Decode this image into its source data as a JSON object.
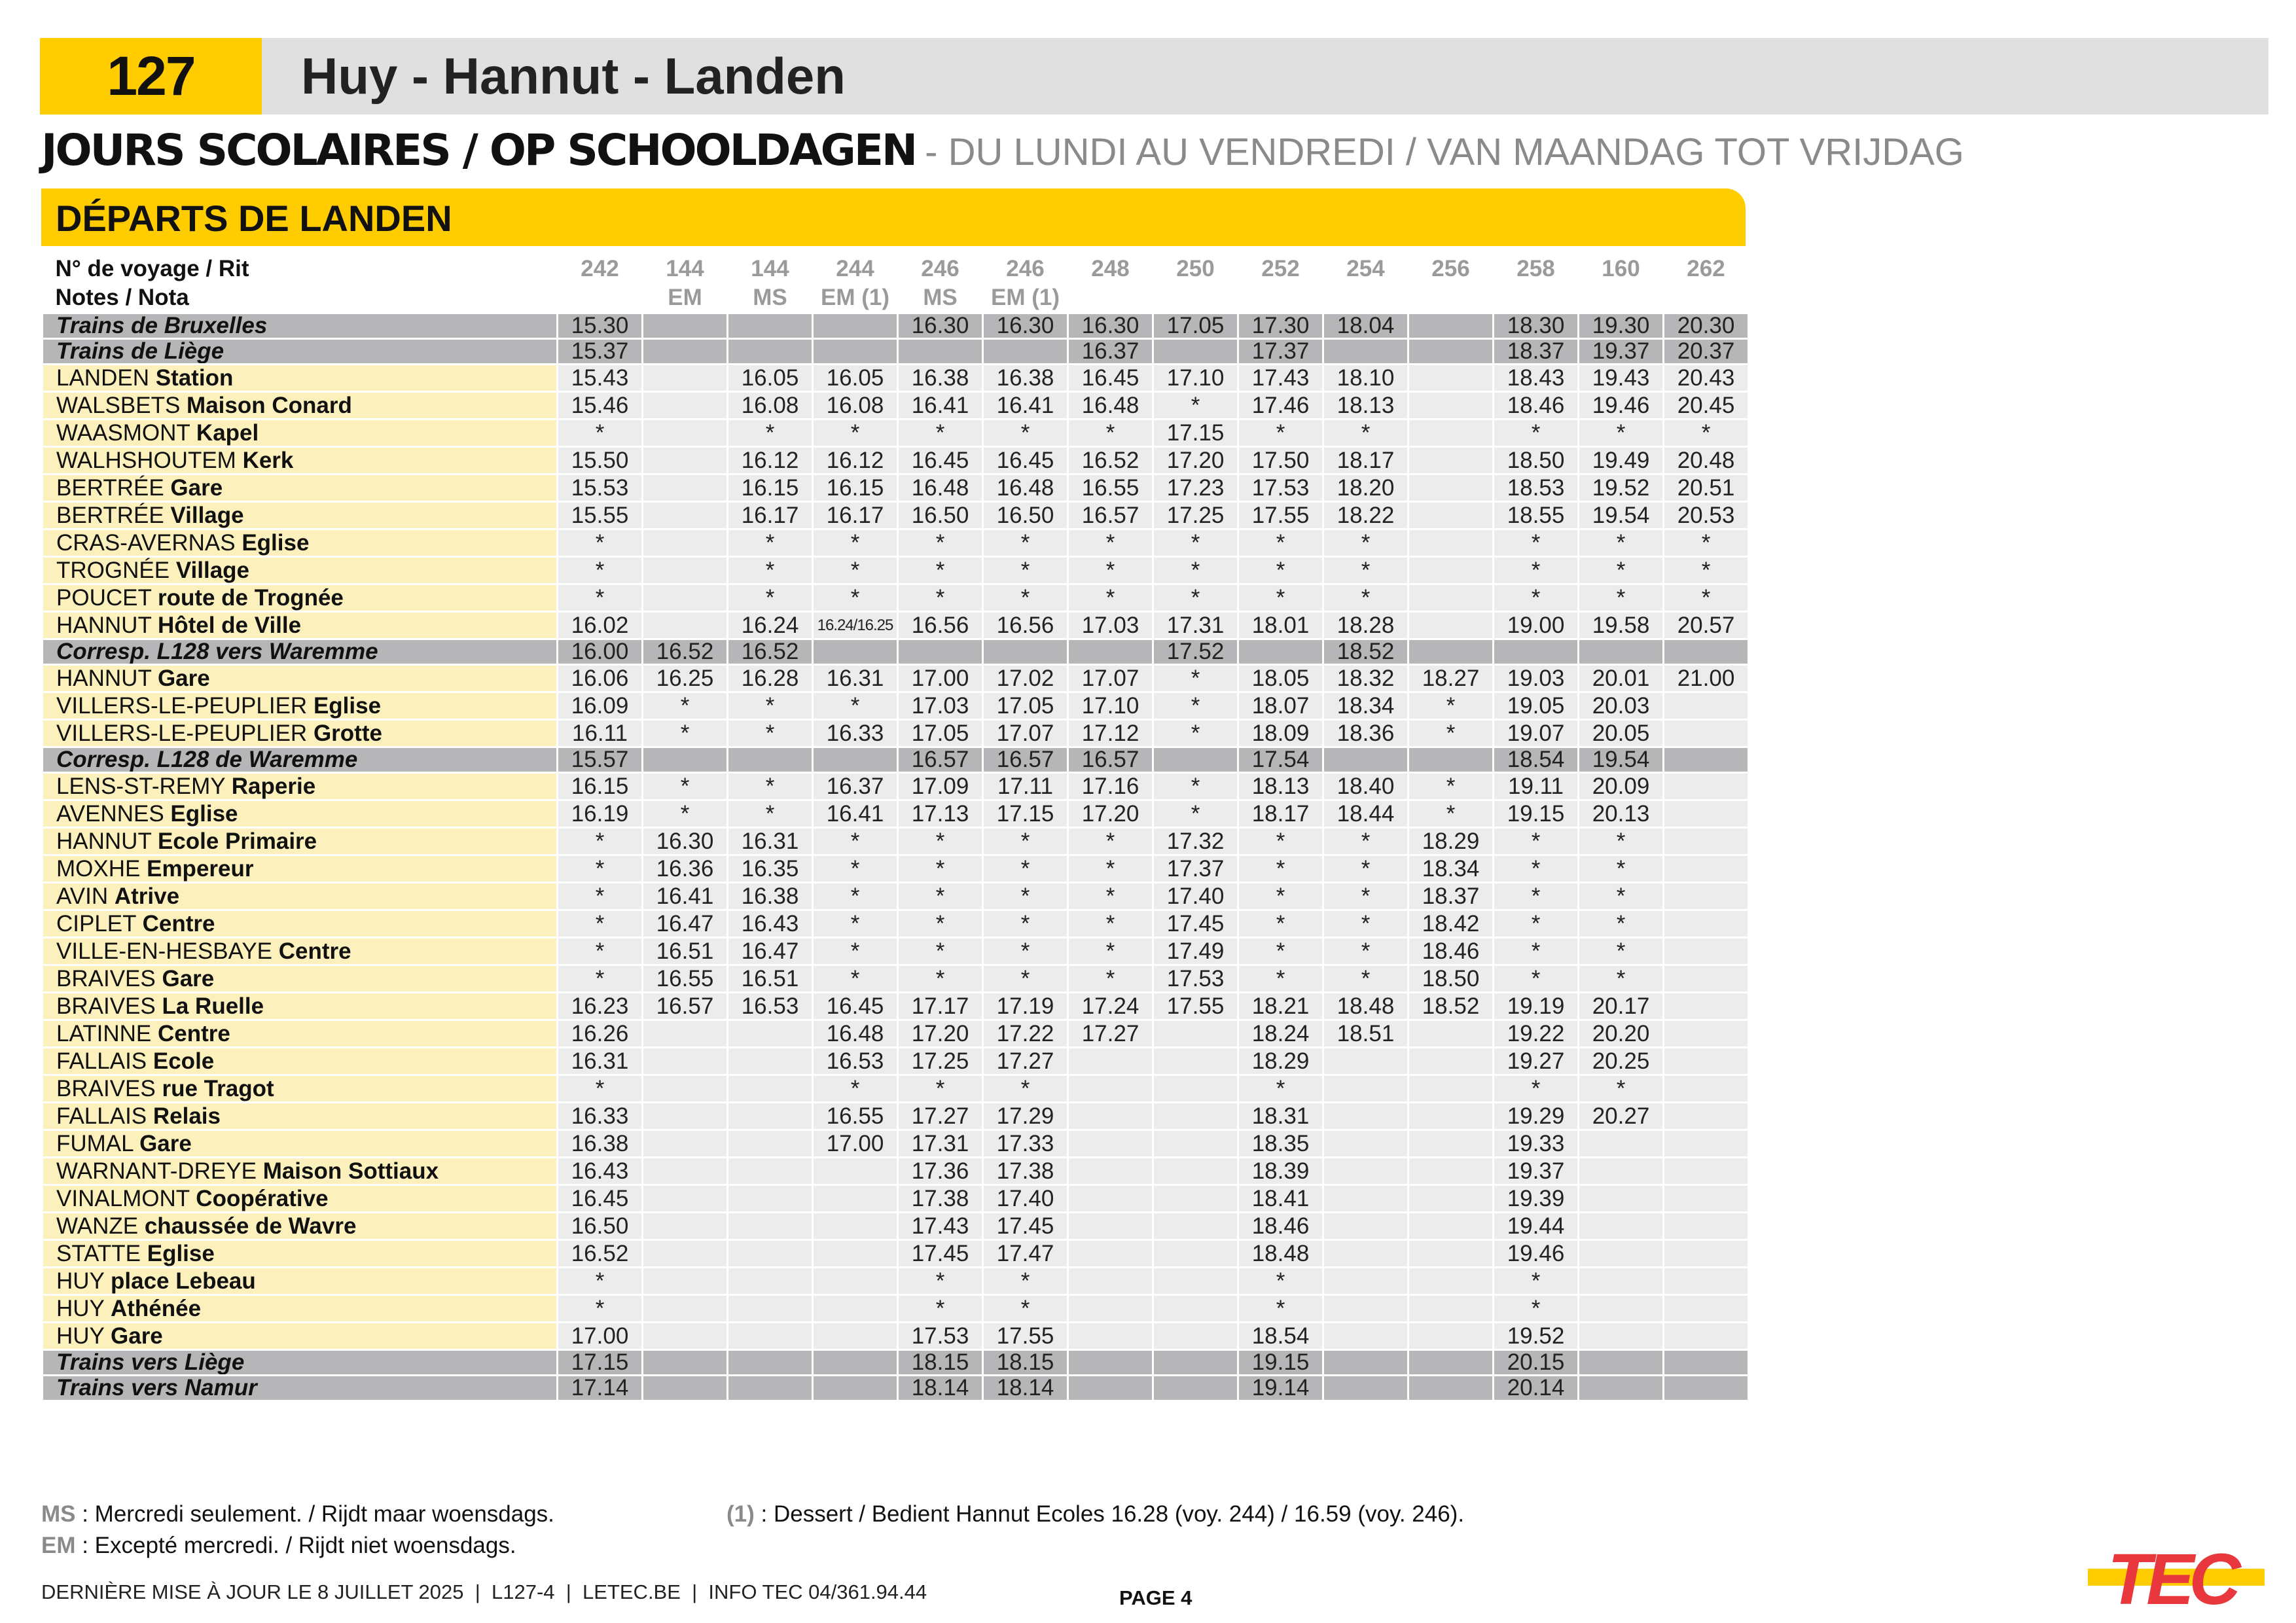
{
  "header": {
    "line_number": "127",
    "title": "Huy - Hannut - Landen"
  },
  "subtitle": {
    "main": "JOURS SCOLAIRES / OP SCHOOLDAGEN",
    "rest": "- DU LUNDI AU VENDREDI / VAN MAANDAG TOT VRIJDAG"
  },
  "direction": "DÉPARTS DE LANDEN",
  "colors": {
    "accent": "#FFCC00",
    "stop_label_bg": "#FCF1BD",
    "cell_bg": "#ECECEC",
    "train_row_bg": "#B6B6B8",
    "logo_red": "#E8383D"
  },
  "table": {
    "trip_label": "N° de voyage / Rit",
    "notes_label": "Notes / Nota",
    "trips": [
      "242",
      "144",
      "144",
      "244",
      "246",
      "246",
      "248",
      "250",
      "252",
      "254",
      "256",
      "258",
      "160",
      "262"
    ],
    "notes": [
      "",
      "EM",
      "MS",
      "EM (1)",
      "MS",
      "EM (1)",
      "",
      "",
      "",
      "",
      "",
      "",
      "",
      ""
    ],
    "rows": [
      {
        "type": "train",
        "town": "Trains de Bruxelles",
        "place": "",
        "times": [
          "15.30",
          "",
          "",
          "",
          "16.30",
          "16.30",
          "16.30",
          "17.05",
          "17.30",
          "18.04",
          "",
          "18.30",
          "19.30",
          "20.30"
        ]
      },
      {
        "type": "train",
        "town": "Trains de Liège",
        "place": "",
        "times": [
          "15.37",
          "",
          "",
          "",
          "",
          "",
          "16.37",
          "",
          "17.37",
          "",
          "",
          "18.37",
          "19.37",
          "20.37"
        ]
      },
      {
        "type": "stop",
        "town": "LANDEN",
        "place": "Station",
        "times": [
          "15.43",
          "",
          "16.05",
          "16.05",
          "16.38",
          "16.38",
          "16.45",
          "17.10",
          "17.43",
          "18.10",
          "",
          "18.43",
          "19.43",
          "20.43"
        ]
      },
      {
        "type": "stop",
        "town": "WALSBETS",
        "place": "Maison Conard",
        "times": [
          "15.46",
          "",
          "16.08",
          "16.08",
          "16.41",
          "16.41",
          "16.48",
          "*",
          "17.46",
          "18.13",
          "",
          "18.46",
          "19.46",
          "20.45"
        ]
      },
      {
        "type": "stop",
        "town": "WAASMONT",
        "place": "Kapel",
        "times": [
          "*",
          "",
          "*",
          "*",
          "*",
          "*",
          "*",
          "17.15",
          "*",
          "*",
          "",
          "*",
          "*",
          "*"
        ]
      },
      {
        "type": "stop",
        "town": "WALHSHOUTEM",
        "place": "Kerk",
        "times": [
          "15.50",
          "",
          "16.12",
          "16.12",
          "16.45",
          "16.45",
          "16.52",
          "17.20",
          "17.50",
          "18.17",
          "",
          "18.50",
          "19.49",
          "20.48"
        ]
      },
      {
        "type": "stop",
        "town": "BERTRÉE",
        "place": "Gare",
        "times": [
          "15.53",
          "",
          "16.15",
          "16.15",
          "16.48",
          "16.48",
          "16.55",
          "17.23",
          "17.53",
          "18.20",
          "",
          "18.53",
          "19.52",
          "20.51"
        ]
      },
      {
        "type": "stop",
        "town": "BERTRÉE",
        "place": "Village",
        "times": [
          "15.55",
          "",
          "16.17",
          "16.17",
          "16.50",
          "16.50",
          "16.57",
          "17.25",
          "17.55",
          "18.22",
          "",
          "18.55",
          "19.54",
          "20.53"
        ]
      },
      {
        "type": "stop",
        "town": "CRAS-AVERNAS",
        "place": "Eglise",
        "times": [
          "*",
          "",
          "*",
          "*",
          "*",
          "*",
          "*",
          "*",
          "*",
          "*",
          "",
          "*",
          "*",
          "*"
        ]
      },
      {
        "type": "stop",
        "town": "TROGNÉE",
        "place": "Village",
        "times": [
          "*",
          "",
          "*",
          "*",
          "*",
          "*",
          "*",
          "*",
          "*",
          "*",
          "",
          "*",
          "*",
          "*"
        ]
      },
      {
        "type": "stop",
        "town": "POUCET",
        "place": "route de Trognée",
        "times": [
          "*",
          "",
          "*",
          "*",
          "*",
          "*",
          "*",
          "*",
          "*",
          "*",
          "",
          "*",
          "*",
          "*"
        ]
      },
      {
        "type": "stop",
        "town": "HANNUT",
        "place": "Hôtel de Ville",
        "times": [
          "16.02",
          "",
          "16.24",
          "16.24/16.25",
          "16.56",
          "16.56",
          "17.03",
          "17.31",
          "18.01",
          "18.28",
          "",
          "19.00",
          "19.58",
          "20.57"
        ]
      },
      {
        "type": "train",
        "town": "Corresp. L128 vers Waremme",
        "place": "",
        "times": [
          "16.00",
          "16.52",
          "16.52",
          "",
          "",
          "",
          "",
          "17.52",
          "",
          "18.52",
          "",
          "",
          "",
          ""
        ]
      },
      {
        "type": "stop",
        "town": "HANNUT",
        "place": "Gare",
        "times": [
          "16.06",
          "16.25",
          "16.28",
          "16.31",
          "17.00",
          "17.02",
          "17.07",
          "*",
          "18.05",
          "18.32",
          "18.27",
          "19.03",
          "20.01",
          "21.00"
        ]
      },
      {
        "type": "stop",
        "town": "VILLERS-LE-PEUPLIER",
        "place": "Eglise",
        "times": [
          "16.09",
          "*",
          "*",
          "*",
          "17.03",
          "17.05",
          "17.10",
          "*",
          "18.07",
          "18.34",
          "*",
          "19.05",
          "20.03",
          ""
        ]
      },
      {
        "type": "stop",
        "town": "VILLERS-LE-PEUPLIER",
        "place": "Grotte",
        "times": [
          "16.11",
          "*",
          "*",
          "16.33",
          "17.05",
          "17.07",
          "17.12",
          "*",
          "18.09",
          "18.36",
          "*",
          "19.07",
          "20.05",
          ""
        ]
      },
      {
        "type": "train",
        "town": "Corresp. L128 de Waremme",
        "place": "",
        "times": [
          "15.57",
          "",
          "",
          "",
          "16.57",
          "16.57",
          "16.57",
          "",
          "17.54",
          "",
          "",
          "18.54",
          "19.54",
          ""
        ]
      },
      {
        "type": "stop",
        "town": "LENS-ST-REMY",
        "place": "Raperie",
        "times": [
          "16.15",
          "*",
          "*",
          "16.37",
          "17.09",
          "17.11",
          "17.16",
          "*",
          "18.13",
          "18.40",
          "*",
          "19.11",
          "20.09",
          ""
        ]
      },
      {
        "type": "stop",
        "town": "AVENNES",
        "place": "Eglise",
        "times": [
          "16.19",
          "*",
          "*",
          "16.41",
          "17.13",
          "17.15",
          "17.20",
          "*",
          "18.17",
          "18.44",
          "*",
          "19.15",
          "20.13",
          ""
        ]
      },
      {
        "type": "stop",
        "town": "HANNUT",
        "place": "Ecole Primaire",
        "times": [
          "*",
          "16.30",
          "16.31",
          "*",
          "*",
          "*",
          "*",
          "17.32",
          "*",
          "*",
          "18.29",
          "*",
          "*",
          ""
        ]
      },
      {
        "type": "stop",
        "town": "MOXHE",
        "place": "Empereur",
        "times": [
          "*",
          "16.36",
          "16.35",
          "*",
          "*",
          "*",
          "*",
          "17.37",
          "*",
          "*",
          "18.34",
          "*",
          "*",
          ""
        ]
      },
      {
        "type": "stop",
        "town": "AVIN",
        "place": "Atrive",
        "times": [
          "*",
          "16.41",
          "16.38",
          "*",
          "*",
          "*",
          "*",
          "17.40",
          "*",
          "*",
          "18.37",
          "*",
          "*",
          ""
        ]
      },
      {
        "type": "stop",
        "town": "CIPLET",
        "place": "Centre",
        "times": [
          "*",
          "16.47",
          "16.43",
          "*",
          "*",
          "*",
          "*",
          "17.45",
          "*",
          "*",
          "18.42",
          "*",
          "*",
          ""
        ]
      },
      {
        "type": "stop",
        "town": "VILLE-EN-HESBAYE",
        "place": "Centre",
        "times": [
          "*",
          "16.51",
          "16.47",
          "*",
          "*",
          "*",
          "*",
          "17.49",
          "*",
          "*",
          "18.46",
          "*",
          "*",
          ""
        ]
      },
      {
        "type": "stop",
        "town": "BRAIVES",
        "place": "Gare",
        "times": [
          "*",
          "16.55",
          "16.51",
          "*",
          "*",
          "*",
          "*",
          "17.53",
          "*",
          "*",
          "18.50",
          "*",
          "*",
          ""
        ]
      },
      {
        "type": "stop",
        "town": "BRAIVES",
        "place": "La Ruelle",
        "times": [
          "16.23",
          "16.57",
          "16.53",
          "16.45",
          "17.17",
          "17.19",
          "17.24",
          "17.55",
          "18.21",
          "18.48",
          "18.52",
          "19.19",
          "20.17",
          ""
        ]
      },
      {
        "type": "stop",
        "town": "LATINNE",
        "place": "Centre",
        "times": [
          "16.26",
          "",
          "",
          "16.48",
          "17.20",
          "17.22",
          "17.27",
          "",
          "18.24",
          "18.51",
          "",
          "19.22",
          "20.20",
          ""
        ]
      },
      {
        "type": "stop",
        "town": "FALLAIS",
        "place": "Ecole",
        "times": [
          "16.31",
          "",
          "",
          "16.53",
          "17.25",
          "17.27",
          "",
          "",
          "18.29",
          "",
          "",
          "19.27",
          "20.25",
          ""
        ]
      },
      {
        "type": "stop",
        "town": "BRAIVES",
        "place": "rue Tragot",
        "times": [
          "*",
          "",
          "",
          "*",
          "*",
          "*",
          "",
          "",
          "*",
          "",
          "",
          "*",
          "*",
          ""
        ]
      },
      {
        "type": "stop",
        "town": "FALLAIS",
        "place": "Relais",
        "times": [
          "16.33",
          "",
          "",
          "16.55",
          "17.27",
          "17.29",
          "",
          "",
          "18.31",
          "",
          "",
          "19.29",
          "20.27",
          ""
        ]
      },
      {
        "type": "stop",
        "town": "FUMAL",
        "place": "Gare",
        "times": [
          "16.38",
          "",
          "",
          "17.00",
          "17.31",
          "17.33",
          "",
          "",
          "18.35",
          "",
          "",
          "19.33",
          "",
          ""
        ]
      },
      {
        "type": "stop",
        "town": "WARNANT-DREYE",
        "place": "Maison Sottiaux",
        "times": [
          "16.43",
          "",
          "",
          "",
          "17.36",
          "17.38",
          "",
          "",
          "18.39",
          "",
          "",
          "19.37",
          "",
          ""
        ]
      },
      {
        "type": "stop",
        "town": "VINALMONT",
        "place": "Coopérative",
        "times": [
          "16.45",
          "",
          "",
          "",
          "17.38",
          "17.40",
          "",
          "",
          "18.41",
          "",
          "",
          "19.39",
          "",
          ""
        ]
      },
      {
        "type": "stop",
        "town": "WANZE",
        "place": "chaussée de Wavre",
        "times": [
          "16.50",
          "",
          "",
          "",
          "17.43",
          "17.45",
          "",
          "",
          "18.46",
          "",
          "",
          "19.44",
          "",
          ""
        ]
      },
      {
        "type": "stop",
        "town": "STATTE",
        "place": "Eglise",
        "times": [
          "16.52",
          "",
          "",
          "",
          "17.45",
          "17.47",
          "",
          "",
          "18.48",
          "",
          "",
          "19.46",
          "",
          ""
        ]
      },
      {
        "type": "stop",
        "town": "HUY",
        "place": "place Lebeau",
        "times": [
          "*",
          "",
          "",
          "",
          "*",
          "*",
          "",
          "",
          "*",
          "",
          "",
          "*",
          "",
          ""
        ]
      },
      {
        "type": "stop",
        "town": "HUY",
        "place": "Athénée",
        "times": [
          "*",
          "",
          "",
          "",
          "*",
          "*",
          "",
          "",
          "*",
          "",
          "",
          "*",
          "",
          ""
        ]
      },
      {
        "type": "stop",
        "town": "HUY",
        "place": "Gare",
        "times": [
          "17.00",
          "",
          "",
          "",
          "17.53",
          "17.55",
          "",
          "",
          "18.54",
          "",
          "",
          "19.52",
          "",
          ""
        ]
      },
      {
        "type": "train",
        "town": "Trains vers Liège",
        "place": "",
        "times": [
          "17.15",
          "",
          "",
          "",
          "18.15",
          "18.15",
          "",
          "",
          "19.15",
          "",
          "",
          "20.15",
          "",
          ""
        ]
      },
      {
        "type": "train",
        "town": "Trains vers Namur",
        "place": "",
        "times": [
          "17.14",
          "",
          "",
          "",
          "18.14",
          "18.14",
          "",
          "",
          "19.14",
          "",
          "",
          "20.14",
          "",
          ""
        ]
      }
    ]
  },
  "legend": {
    "ms_key": "MS",
    "ms_text": " : Mercredi seulement. / Rijdt maar woensdags.",
    "em_key": "EM",
    "em_text": " : Excepté mercredi. / Rijdt niet woensdags.",
    "n1_key": "(1)",
    "n1_text": " : Dessert / Bedient Hannut Ecoles 16.28 (voy. 244) / 16.59 (voy. 246)."
  },
  "footer": {
    "text": "DERNIÈRE MISE À JOUR LE 8 JUILLET 2025  |  L127-4  |  LETEC.BE  |  INFO TEC 04/361.94.44",
    "page": "PAGE 4",
    "logo": "TEC"
  }
}
